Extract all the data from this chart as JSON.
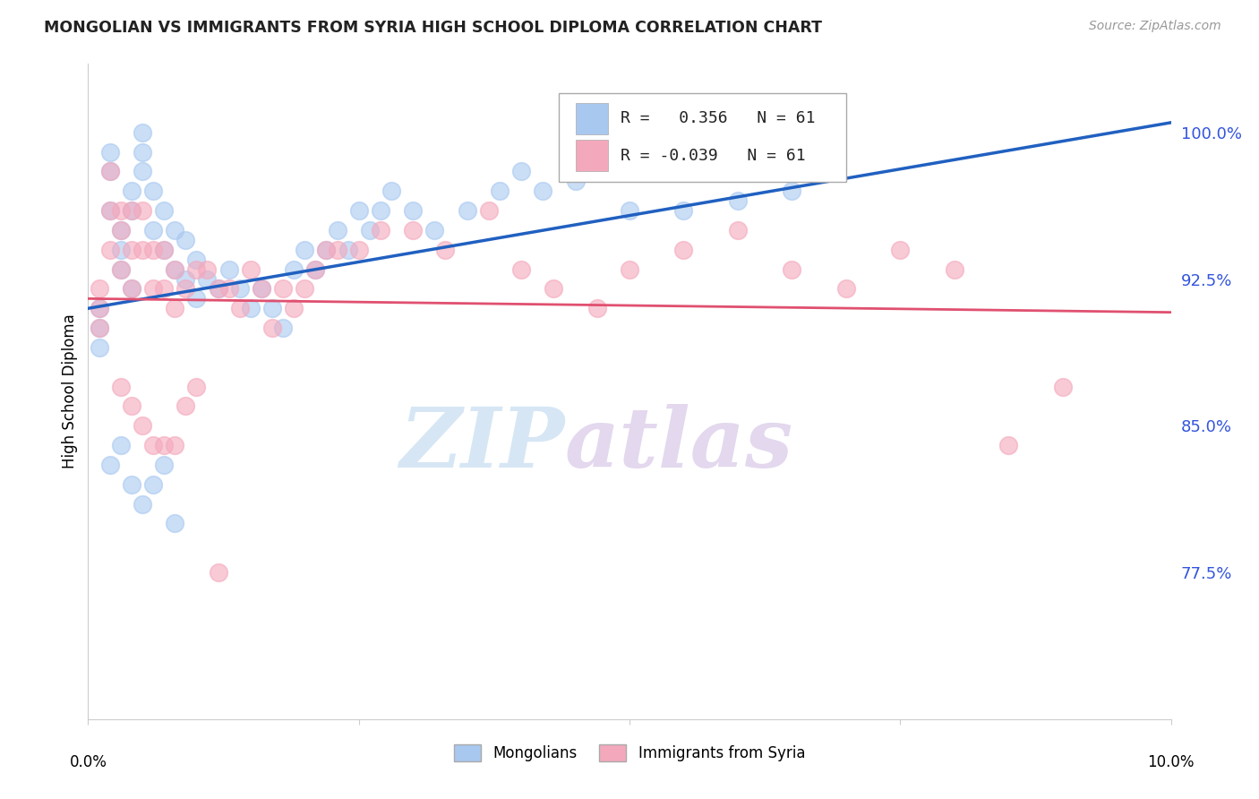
{
  "title": "MONGOLIAN VS IMMIGRANTS FROM SYRIA HIGH SCHOOL DIPLOMA CORRELATION CHART",
  "source": "Source: ZipAtlas.com",
  "ylabel": "High School Diploma",
  "y_ticks": [
    0.775,
    0.85,
    0.925,
    1.0
  ],
  "y_tick_labels": [
    "77.5%",
    "85.0%",
    "92.5%",
    "100.0%"
  ],
  "x_min": 0.0,
  "x_max": 0.1,
  "y_min": 0.7,
  "y_max": 1.035,
  "r_mongolian": 0.356,
  "n_mongolian": 61,
  "r_syria": -0.039,
  "n_syria": 61,
  "color_mongolian": "#A8C8F0",
  "color_syria": "#F4A8BC",
  "color_blue_line": "#2060C0",
  "color_pink_line": "#E05070",
  "watermark_zip": "ZIP",
  "watermark_atlas": "atlas",
  "legend_labels": [
    "Mongolians",
    "Immigrants from Syria"
  ],
  "blue_line_y0": 0.91,
  "blue_line_y1": 1.005,
  "pink_line_y0": 0.915,
  "pink_line_y1": 0.908,
  "mongolian_x": [
    0.001,
    0.001,
    0.001,
    0.002,
    0.002,
    0.002,
    0.003,
    0.003,
    0.003,
    0.004,
    0.004,
    0.004,
    0.005,
    0.005,
    0.005,
    0.006,
    0.006,
    0.007,
    0.007,
    0.008,
    0.008,
    0.009,
    0.009,
    0.01,
    0.01,
    0.011,
    0.012,
    0.013,
    0.014,
    0.015,
    0.016,
    0.017,
    0.018,
    0.019,
    0.02,
    0.021,
    0.022,
    0.023,
    0.024,
    0.025,
    0.026,
    0.027,
    0.028,
    0.03,
    0.032,
    0.035,
    0.038,
    0.04,
    0.042,
    0.045,
    0.05,
    0.055,
    0.06,
    0.065,
    0.002,
    0.003,
    0.004,
    0.005,
    0.006,
    0.007,
    0.008
  ],
  "mongolian_y": [
    0.91,
    0.9,
    0.89,
    0.99,
    0.98,
    0.96,
    0.95,
    0.94,
    0.93,
    0.97,
    0.96,
    0.92,
    1.0,
    0.99,
    0.98,
    0.97,
    0.95,
    0.96,
    0.94,
    0.95,
    0.93,
    0.945,
    0.925,
    0.935,
    0.915,
    0.925,
    0.92,
    0.93,
    0.92,
    0.91,
    0.92,
    0.91,
    0.9,
    0.93,
    0.94,
    0.93,
    0.94,
    0.95,
    0.94,
    0.96,
    0.95,
    0.96,
    0.97,
    0.96,
    0.95,
    0.96,
    0.97,
    0.98,
    0.97,
    0.975,
    0.96,
    0.96,
    0.965,
    0.97,
    0.83,
    0.84,
    0.82,
    0.81,
    0.82,
    0.83,
    0.8
  ],
  "syria_x": [
    0.001,
    0.001,
    0.001,
    0.002,
    0.002,
    0.002,
    0.003,
    0.003,
    0.003,
    0.004,
    0.004,
    0.004,
    0.005,
    0.005,
    0.006,
    0.006,
    0.007,
    0.007,
    0.008,
    0.008,
    0.009,
    0.01,
    0.011,
    0.012,
    0.013,
    0.014,
    0.015,
    0.016,
    0.017,
    0.018,
    0.019,
    0.02,
    0.021,
    0.022,
    0.023,
    0.025,
    0.027,
    0.03,
    0.033,
    0.037,
    0.04,
    0.043,
    0.047,
    0.05,
    0.055,
    0.06,
    0.065,
    0.07,
    0.075,
    0.08,
    0.085,
    0.09,
    0.003,
    0.004,
    0.005,
    0.006,
    0.007,
    0.008,
    0.009,
    0.01,
    0.012
  ],
  "syria_y": [
    0.92,
    0.91,
    0.9,
    0.98,
    0.96,
    0.94,
    0.96,
    0.95,
    0.93,
    0.96,
    0.94,
    0.92,
    0.96,
    0.94,
    0.94,
    0.92,
    0.94,
    0.92,
    0.93,
    0.91,
    0.92,
    0.93,
    0.93,
    0.92,
    0.92,
    0.91,
    0.93,
    0.92,
    0.9,
    0.92,
    0.91,
    0.92,
    0.93,
    0.94,
    0.94,
    0.94,
    0.95,
    0.95,
    0.94,
    0.96,
    0.93,
    0.92,
    0.91,
    0.93,
    0.94,
    0.95,
    0.93,
    0.92,
    0.94,
    0.93,
    0.84,
    0.87,
    0.87,
    0.86,
    0.85,
    0.84,
    0.84,
    0.84,
    0.86,
    0.87,
    0.775
  ]
}
